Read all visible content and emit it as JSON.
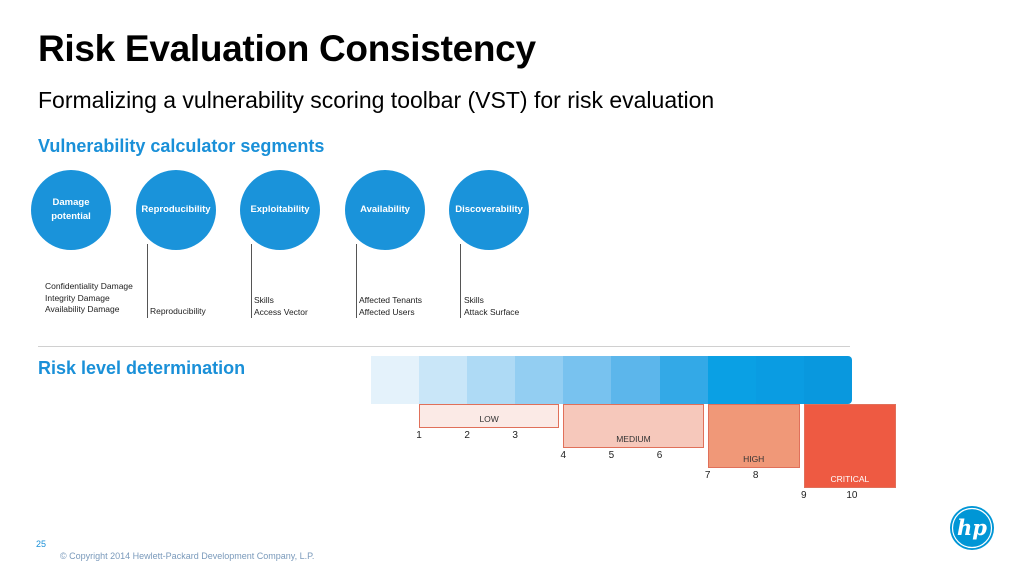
{
  "title": "Risk Evaluation Consistency",
  "subtitle": "Formalizing a vulnerability scoring toolbar (VST) for risk evaluation",
  "section1": "Vulnerability calculator segments",
  "section2": "Risk level determination",
  "segments": [
    {
      "label": "Damage\npotential",
      "details": [
        "Confidentiality Damage",
        "Integrity Damage",
        "Availability Damage"
      ]
    },
    {
      "label": "Reproducibility",
      "details": [
        "Reproducibility"
      ]
    },
    {
      "label": "Exploitability",
      "details": [
        "Skills",
        "Access Vector"
      ]
    },
    {
      "label": "Availability",
      "details": [
        "Affected Tenants",
        "Affected Users"
      ]
    },
    {
      "label": "Discoverability",
      "details": [
        "Skills",
        "Attack Surface"
      ]
    }
  ],
  "scale": {
    "colors": [
      "#e4f2fb",
      "#c9e6f8",
      "#aedaf5",
      "#93cef2",
      "#78c2ef",
      "#5cb6eb",
      "#33a9e7",
      "#0aa0e4",
      "#0a9ce2",
      "#0998de"
    ],
    "levels": [
      {
        "label": "LOW",
        "from": 1,
        "to": 3,
        "fill": "#fbeae6",
        "numbers": [
          1,
          2,
          3
        ]
      },
      {
        "label": "MEDIUM",
        "from": 4,
        "to": 6,
        "fill": "#f6c8bb",
        "numbers": [
          4,
          5,
          6
        ]
      },
      {
        "label": "HIGH",
        "from": 7,
        "to": 8,
        "fill": "#f09878",
        "numbers": [
          7,
          8
        ]
      },
      {
        "label": "CRITICAL",
        "from": 9,
        "to": 10,
        "fill": "#ee5a42",
        "numbers": [
          9,
          10
        ]
      }
    ]
  },
  "footer": {
    "page": "25",
    "copyright": "© Copyright 2014 Hewlett-Packard Development Company, L.P."
  },
  "logo": {
    "icon": "hp-logo-icon",
    "color": "#0096d6",
    "text": "hp"
  }
}
